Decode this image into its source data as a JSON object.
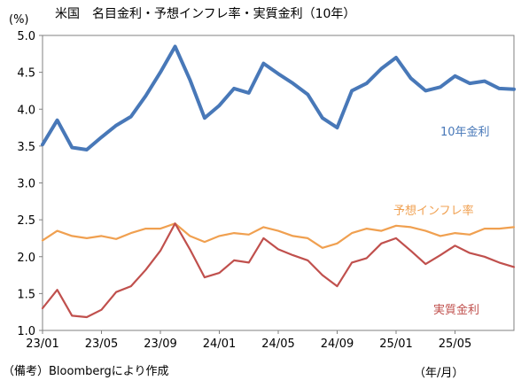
{
  "chart_data": {
    "type": "line",
    "title": "米国　名目金利・予想インフレ率・実質金利（10年）",
    "ylabel": "(%)",
    "xlabel": "（年/月）",
    "ylim": [
      1.0,
      5.0
    ],
    "yticks": [
      "5.0",
      "4.5",
      "4.0",
      "3.5",
      "3.0",
      "2.5",
      "2.0",
      "1.5",
      "1.0"
    ],
    "xticks": [
      "23/01",
      "23/05",
      "23/09",
      "24/01",
      "24/05",
      "24/09",
      "25/01",
      "25/05"
    ],
    "grid": false,
    "legend": "inline",
    "source": "（備考）Bloombergにより作成",
    "x": [
      "2023-01",
      "2023-02",
      "2023-03",
      "2023-04",
      "2023-05",
      "2023-06",
      "2023-07",
      "2023-08",
      "2023-09",
      "2023-10",
      "2023-11",
      "2023-12",
      "2024-01",
      "2024-02",
      "2024-03",
      "2024-04",
      "2024-05",
      "2024-06",
      "2024-07",
      "2024-08",
      "2024-09",
      "2024-10",
      "2024-11",
      "2024-12",
      "2025-01",
      "2025-02",
      "2025-03",
      "2025-04",
      "2025-05",
      "2025-06",
      "2025-07",
      "2025-08",
      "2025-09"
    ],
    "series": [
      {
        "name": "10年金利",
        "color": "#4878b8",
        "values": [
          3.52,
          3.85,
          3.48,
          3.45,
          3.62,
          3.78,
          3.9,
          4.18,
          4.5,
          4.85,
          4.4,
          3.88,
          4.05,
          4.28,
          4.22,
          4.62,
          4.48,
          4.35,
          4.2,
          3.88,
          3.75,
          4.25,
          4.35,
          4.55,
          4.7,
          4.42,
          4.25,
          4.3,
          4.45,
          4.35,
          4.38,
          4.28,
          4.27
        ]
      },
      {
        "name": "予想インフレ率",
        "color": "#f0a050",
        "values": [
          2.22,
          2.35,
          2.28,
          2.25,
          2.28,
          2.24,
          2.32,
          2.38,
          2.38,
          2.45,
          2.28,
          2.2,
          2.28,
          2.32,
          2.3,
          2.4,
          2.35,
          2.28,
          2.25,
          2.12,
          2.18,
          2.32,
          2.38,
          2.35,
          2.42,
          2.4,
          2.35,
          2.28,
          2.32,
          2.3,
          2.38,
          2.38,
          2.4
        ]
      },
      {
        "name": "実質金利",
        "color": "#c0504d",
        "values": [
          1.3,
          1.55,
          1.2,
          1.18,
          1.28,
          1.52,
          1.6,
          1.82,
          2.08,
          2.45,
          2.1,
          1.72,
          1.78,
          1.95,
          1.92,
          2.25,
          2.1,
          2.02,
          1.95,
          1.75,
          1.6,
          1.92,
          1.98,
          2.18,
          2.25,
          2.08,
          1.9,
          2.02,
          2.15,
          2.05,
          2.0,
          1.92,
          1.86
        ]
      }
    ]
  }
}
